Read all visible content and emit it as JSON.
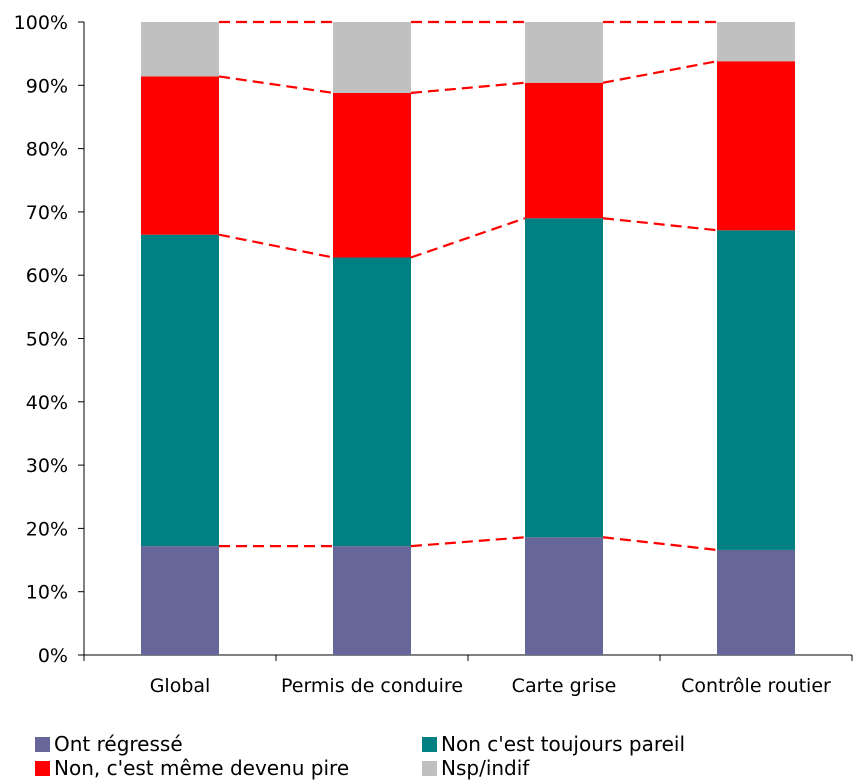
{
  "chart_data": {
    "type": "bar",
    "stacked": true,
    "categories": [
      "Global",
      "Permis de conduire",
      "Carte grise",
      "Contrôle routier"
    ],
    "series": [
      {
        "name": "Ont régressé",
        "color": "#666699",
        "values": [
          17.2,
          17.2,
          18.6,
          16.6
        ]
      },
      {
        "name": "Non c'est toujours pareil",
        "color": "#008080",
        "values": [
          49.2,
          45.6,
          50.4,
          50.5
        ]
      },
      {
        "name": "Non, c'est même devenu pire",
        "color": "#ff0000",
        "values": [
          25.0,
          26.0,
          21.4,
          26.7
        ]
      },
      {
        "name": "Nsp/indif",
        "color": "#c0c0c0",
        "values": [
          8.6,
          11.2,
          9.6,
          6.2
        ]
      }
    ],
    "y_ticks": [
      "0%",
      "10%",
      "20%",
      "30%",
      "40%",
      "50%",
      "60%",
      "70%",
      "80%",
      "90%",
      "100%"
    ],
    "ylim": [
      0,
      100
    ],
    "connector_lines": "red-dashed",
    "legend_position": "bottom",
    "title": "",
    "xlabel": "",
    "ylabel": ""
  }
}
